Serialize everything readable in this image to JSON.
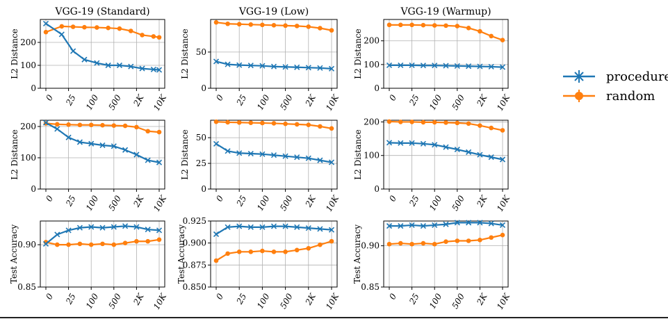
{
  "legend": {
    "items": [
      {
        "label": "procedure",
        "color": "#1f77b4",
        "marker": "x"
      },
      {
        "label": "random",
        "color": "#ff7f0e",
        "marker": "o"
      }
    ]
  },
  "chart_data": [
    {
      "type": "line",
      "title": "VGG-19 (Standard)",
      "xlabel": "",
      "ylabel": "L2 Distance",
      "categories": [
        "0",
        "25",
        "100",
        "500",
        "2K",
        "10K"
      ],
      "x": [
        0,
        0.7,
        1.2,
        1.7,
        2.25,
        2.75,
        3.25,
        3.75,
        4.25,
        4.75,
        5
      ],
      "ylim": [
        0,
        300
      ],
      "yticks": [
        0,
        100,
        200
      ],
      "series": [
        {
          "name": "procedure",
          "values": [
            282,
            235,
            162,
            125,
            110,
            100,
            100,
            95,
            86,
            82,
            80
          ]
        },
        {
          "name": "random",
          "values": [
            245,
            270,
            268,
            266,
            265,
            263,
            260,
            250,
            232,
            226,
            222
          ]
        }
      ]
    },
    {
      "type": "line",
      "title": "VGG-19 (Low)",
      "xlabel": "",
      "ylabel": "L2 Distance",
      "categories": [
        "0",
        "25",
        "100",
        "500",
        "2K",
        "10K"
      ],
      "x": [
        0,
        0.5,
        1,
        1.5,
        2,
        2.5,
        3,
        3.5,
        4,
        4.5,
        5
      ],
      "ylim": [
        0,
        95
      ],
      "yticks": [
        0,
        50
      ],
      "series": [
        {
          "name": "procedure",
          "values": [
            37,
            33,
            32,
            31.5,
            31,
            30,
            29.5,
            29,
            28.5,
            28,
            27
          ]
        },
        {
          "name": "random",
          "values": [
            91,
            89,
            88.5,
            88,
            87.5,
            87,
            86.5,
            86,
            85,
            83,
            80
          ]
        }
      ]
    },
    {
      "type": "line",
      "title": "VGG-19 (Warmup)",
      "xlabel": "",
      "ylabel": "L2 Distance",
      "categories": [
        "0",
        "25",
        "100",
        "500",
        "2K",
        "10K"
      ],
      "x": [
        0,
        0.5,
        1,
        1.5,
        2,
        2.5,
        3,
        3.5,
        4,
        4.5,
        5
      ],
      "ylim": [
        0,
        290
      ],
      "yticks": [
        0,
        100,
        200
      ],
      "series": [
        {
          "name": "procedure",
          "values": [
            97,
            97,
            97,
            96,
            96,
            95,
            94,
            93,
            92,
            91,
            89
          ]
        },
        {
          "name": "random",
          "values": [
            267,
            267,
            267,
            266,
            265,
            264,
            262,
            254,
            240,
            220,
            203
          ]
        }
      ]
    },
    {
      "type": "line",
      "title": "",
      "xlabel": "",
      "ylabel": "L2 Distance",
      "categories": [
        "0",
        "25",
        "100",
        "500",
        "2K",
        "10K"
      ],
      "x": [
        0,
        0.5,
        1,
        1.5,
        2,
        2.5,
        3,
        3.5,
        4,
        4.5,
        5
      ],
      "ylim": [
        0,
        220
      ],
      "yticks": [
        0,
        100,
        200
      ],
      "series": [
        {
          "name": "procedure",
          "values": [
            212,
            192,
            165,
            150,
            145,
            140,
            137,
            125,
            110,
            92,
            85
          ]
        },
        {
          "name": "random",
          "values": [
            210,
            207,
            206,
            205,
            205,
            204,
            203,
            202,
            198,
            185,
            182
          ]
        }
      ]
    },
    {
      "type": "line",
      "title": "",
      "xlabel": "",
      "ylabel": "L2 Distance",
      "categories": [
        "0",
        "25",
        "100",
        "500",
        "2K",
        "10K"
      ],
      "x": [
        0,
        0.5,
        1,
        1.5,
        2,
        2.5,
        3,
        3.5,
        4,
        4.5,
        5
      ],
      "ylim": [
        0,
        67
      ],
      "yticks": [
        0,
        25,
        50
      ],
      "series": [
        {
          "name": "procedure",
          "values": [
            44,
            37,
            35,
            34.5,
            34,
            33,
            32,
            31,
            30,
            28,
            26
          ]
        },
        {
          "name": "random",
          "values": [
            65.5,
            65,
            64.8,
            64.5,
            64.3,
            64,
            63.5,
            63,
            62.5,
            61,
            59
          ]
        }
      ]
    },
    {
      "type": "line",
      "title": "",
      "xlabel": "",
      "ylabel": "L2 Distance",
      "categories": [
        "0",
        "25",
        "100",
        "500",
        "2K",
        "10K"
      ],
      "x": [
        0,
        0.5,
        1,
        1.5,
        2,
        2.5,
        3,
        3.5,
        4,
        4.5,
        5
      ],
      "ylim": [
        0,
        205
      ],
      "yticks": [
        0,
        100,
        200
      ],
      "series": [
        {
          "name": "procedure",
          "values": [
            138,
            137,
            137,
            135,
            132,
            125,
            118,
            110,
            102,
            95,
            88
          ]
        },
        {
          "name": "random",
          "values": [
            201,
            200,
            200,
            199,
            199,
            198,
            197,
            195,
            189,
            182,
            175
          ]
        }
      ]
    },
    {
      "type": "line",
      "title": "",
      "xlabel": "",
      "ylabel": "Test Accuracy",
      "categories": [
        "0",
        "25",
        "100",
        "500",
        "2K",
        "10K"
      ],
      "x": [
        0,
        0.5,
        1,
        1.5,
        2,
        2.5,
        3,
        3.5,
        4,
        4.5,
        5
      ],
      "ylim": [
        0.85,
        0.928
      ],
      "yticks": [
        0.85,
        0.9
      ],
      "ytick_labels": [
        "0.85",
        "0.90"
      ],
      "series": [
        {
          "name": "procedure",
          "values": [
            0.901,
            0.912,
            0.917,
            0.92,
            0.921,
            0.92,
            0.921,
            0.922,
            0.921,
            0.918,
            0.917
          ]
        },
        {
          "name": "random",
          "values": [
            0.903,
            0.9,
            0.9,
            0.901,
            0.9,
            0.901,
            0.9,
            0.902,
            0.904,
            0.904,
            0.906
          ]
        }
      ]
    },
    {
      "type": "line",
      "title": "",
      "xlabel": "",
      "ylabel": "Test Accuracy",
      "categories": [
        "0",
        "25",
        "100",
        "500",
        "2K",
        "10K"
      ],
      "x": [
        0,
        0.5,
        1,
        1.5,
        2,
        2.5,
        3,
        3.5,
        4,
        4.5,
        5
      ],
      "ylim": [
        0.85,
        0.925
      ],
      "yticks": [
        0.85,
        0.875,
        0.9,
        0.925
      ],
      "ytick_labels": [
        "0.850",
        "0.875",
        "0.900",
        "0.925"
      ],
      "series": [
        {
          "name": "procedure",
          "values": [
            0.91,
            0.918,
            0.919,
            0.918,
            0.918,
            0.919,
            0.919,
            0.918,
            0.917,
            0.916,
            0.915
          ]
        },
        {
          "name": "random",
          "values": [
            0.88,
            0.888,
            0.89,
            0.89,
            0.891,
            0.89,
            0.89,
            0.892,
            0.894,
            0.898,
            0.902
          ]
        }
      ]
    },
    {
      "type": "line",
      "title": "",
      "xlabel": "",
      "ylabel": "Test Accuracy",
      "categories": [
        "0",
        "25",
        "100",
        "500",
        "2K",
        "10K"
      ],
      "x": [
        0,
        0.5,
        1,
        1.5,
        2,
        2.5,
        3,
        3.5,
        4,
        4.5,
        5
      ],
      "ylim": [
        0.85,
        0.93
      ],
      "yticks": [
        0.85,
        0.9
      ],
      "ytick_labels": [
        "0.85",
        "0.90"
      ],
      "series": [
        {
          "name": "procedure",
          "values": [
            0.924,
            0.924,
            0.925,
            0.924,
            0.925,
            0.926,
            0.928,
            0.928,
            0.928,
            0.927,
            0.925
          ]
        },
        {
          "name": "random",
          "values": [
            0.902,
            0.903,
            0.902,
            0.903,
            0.902,
            0.905,
            0.906,
            0.906,
            0.907,
            0.91,
            0.913
          ]
        }
      ]
    }
  ]
}
